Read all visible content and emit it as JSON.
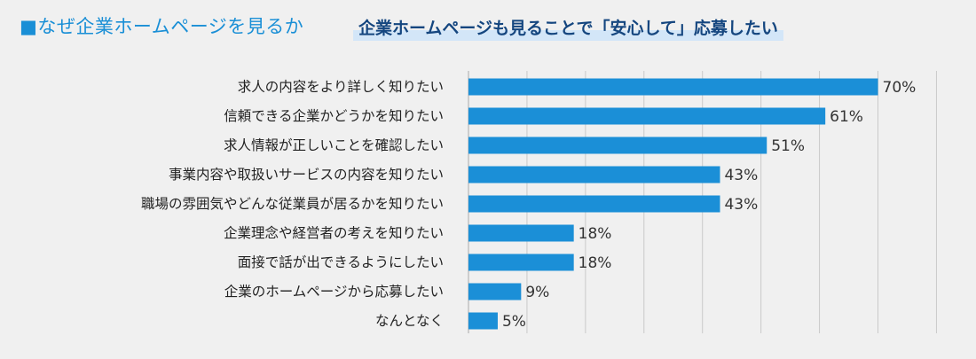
{
  "header": {
    "title": "■なぜ企業ホームページを見るか",
    "subtitle": "企業ホームページも見ることで「安心して」応募したい"
  },
  "colors": {
    "bar": "#1b8fd7",
    "title": "#1a8fd6",
    "subtitle": "#15467f",
    "subtitle_highlight": "#d3e6f8",
    "grid": "#c9c9c9",
    "background": "#f0f0f0"
  },
  "chart_data": {
    "type": "bar",
    "orientation": "horizontal",
    "title": "",
    "xlabel": "",
    "ylabel": "",
    "value_suffix": "%",
    "xlim": [
      0,
      100
    ],
    "grid": true,
    "categories": [
      "求人の内容をより詳しく知りたい",
      "信頼できる企業かどうかを知りたい",
      "求人情報が正しいことを確認したい",
      "事業内容や取扱いサービスの内容を知りたい",
      "職場の雰囲気やどんな従業員が居るかを知りたい",
      "企業理念や経営者の考えを知りたい",
      "面接で話が出できるようにしたい",
      "企業のホームページから応募したい",
      "なんとなく"
    ],
    "values": [
      70,
      61,
      51,
      43,
      43,
      18,
      18,
      9,
      5
    ]
  }
}
